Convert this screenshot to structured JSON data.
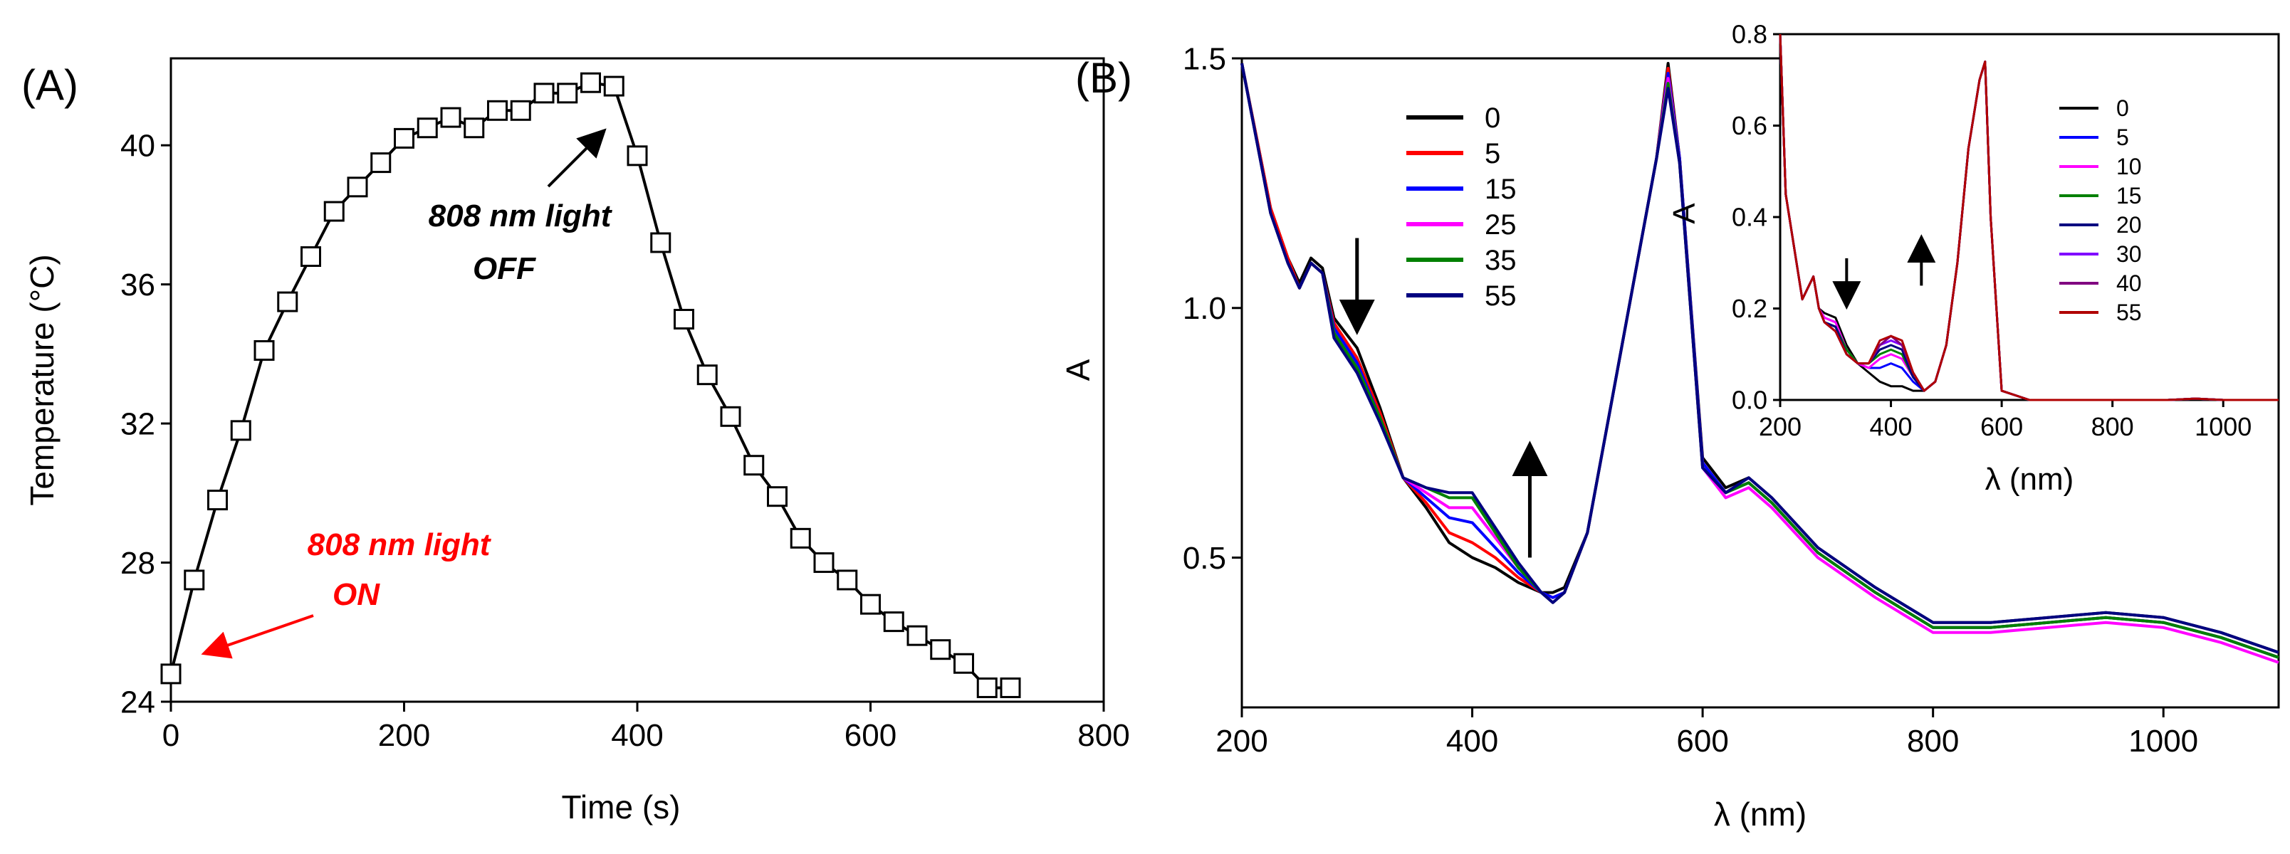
{
  "chart_data": [
    {
      "id": "A",
      "panel_label": "(A)",
      "type": "line",
      "xlabel": "Time (s)",
      "ylabel": "Temperature (°C)",
      "xlim": [
        0,
        800
      ],
      "ylim": [
        24,
        42.5
      ],
      "xticks": [
        0,
        200,
        400,
        600,
        800
      ],
      "yticks": [
        24,
        28,
        32,
        36,
        40
      ],
      "marker": "open-square",
      "series": [
        {
          "name": "Temperature",
          "color": "#000000",
          "x": [
            0,
            20,
            40,
            60,
            80,
            100,
            120,
            140,
            160,
            180,
            200,
            220,
            240,
            260,
            280,
            300,
            320,
            340,
            360,
            380,
            400,
            420,
            440,
            460,
            480,
            500,
            520,
            540,
            560,
            580,
            600,
            620,
            640,
            660,
            680,
            700,
            720
          ],
          "y": [
            24.8,
            27.5,
            29.8,
            31.8,
            34.1,
            35.5,
            36.8,
            38.1,
            38.8,
            39.5,
            40.2,
            40.5,
            40.8,
            40.5,
            41.0,
            41.0,
            41.5,
            41.5,
            41.8,
            41.7,
            39.7,
            37.2,
            35.0,
            33.4,
            32.2,
            30.8,
            29.9,
            28.7,
            28.0,
            27.5,
            26.8,
            26.3,
            25.9,
            25.5,
            25.1,
            24.4,
            24.4
          ]
        }
      ],
      "annotations": [
        {
          "line1": "808 nm light",
          "line2": "ON",
          "color": "#ff0000",
          "points_to": [
            5,
            24.8
          ]
        },
        {
          "line1": "808 nm light",
          "line2": "OFF",
          "color": "#000000",
          "points_to": [
            360,
            41.7
          ]
        }
      ]
    },
    {
      "id": "B",
      "panel_label": "(B)",
      "type": "line",
      "xlabel": "λ (nm)",
      "ylabel": "A",
      "xlim": [
        200,
        1100
      ],
      "ylim": [
        0.2,
        1.5
      ],
      "xticks": [
        200,
        400,
        600,
        800,
        1000
      ],
      "yticks": [
        0.5,
        1.0,
        1.5
      ],
      "ytick_labels": [
        "0.5",
        "1.0",
        "1.5"
      ],
      "x": [
        200,
        225,
        240,
        250,
        260,
        270,
        280,
        300,
        320,
        340,
        360,
        380,
        400,
        420,
        440,
        460,
        470,
        480,
        500,
        520,
        540,
        560,
        570,
        580,
        600,
        620,
        640,
        660,
        700,
        750,
        800,
        850,
        900,
        950,
        1000,
        1050,
        1100
      ],
      "series": [
        {
          "name": "0",
          "color": "#000000",
          "y": [
            1.49,
            1.2,
            1.1,
            1.05,
            1.1,
            1.08,
            0.98,
            0.92,
            0.8,
            0.66,
            0.6,
            0.53,
            0.5,
            0.48,
            0.45,
            0.43,
            0.43,
            0.44,
            0.55,
            0.8,
            1.05,
            1.3,
            1.49,
            1.3,
            0.7,
            0.64,
            0.66,
            0.62,
            0.52,
            0.44,
            0.37,
            0.37,
            0.38,
            0.39,
            0.38,
            0.35,
            0.31
          ]
        },
        {
          "name": "5",
          "color": "#ff0000",
          "y": [
            1.49,
            1.2,
            1.1,
            1.04,
            1.09,
            1.07,
            0.97,
            0.9,
            0.79,
            0.66,
            0.61,
            0.55,
            0.53,
            0.5,
            0.46,
            0.43,
            0.42,
            0.43,
            0.55,
            0.8,
            1.05,
            1.3,
            1.48,
            1.3,
            0.69,
            0.63,
            0.65,
            0.61,
            0.51,
            0.43,
            0.36,
            0.36,
            0.37,
            0.38,
            0.37,
            0.34,
            0.3
          ]
        },
        {
          "name": "15",
          "color": "#0000ff",
          "y": [
            1.49,
            1.19,
            1.09,
            1.04,
            1.09,
            1.07,
            0.96,
            0.89,
            0.78,
            0.66,
            0.62,
            0.58,
            0.57,
            0.52,
            0.47,
            0.43,
            0.42,
            0.43,
            0.55,
            0.8,
            1.05,
            1.3,
            1.47,
            1.3,
            0.69,
            0.63,
            0.65,
            0.61,
            0.51,
            0.43,
            0.36,
            0.36,
            0.37,
            0.38,
            0.37,
            0.34,
            0.3
          ]
        },
        {
          "name": "25",
          "color": "#ff00ff",
          "y": [
            1.49,
            1.19,
            1.09,
            1.04,
            1.09,
            1.07,
            0.95,
            0.88,
            0.78,
            0.66,
            0.63,
            0.6,
            0.6,
            0.54,
            0.48,
            0.43,
            0.41,
            0.43,
            0.55,
            0.8,
            1.05,
            1.3,
            1.46,
            1.29,
            0.68,
            0.62,
            0.64,
            0.6,
            0.5,
            0.42,
            0.35,
            0.35,
            0.36,
            0.37,
            0.36,
            0.33,
            0.29
          ]
        },
        {
          "name": "35",
          "color": "#008000",
          "y": [
            1.49,
            1.19,
            1.09,
            1.04,
            1.09,
            1.07,
            0.95,
            0.88,
            0.78,
            0.66,
            0.64,
            0.62,
            0.62,
            0.55,
            0.48,
            0.43,
            0.41,
            0.43,
            0.55,
            0.8,
            1.05,
            1.3,
            1.45,
            1.29,
            0.68,
            0.63,
            0.65,
            0.61,
            0.51,
            0.43,
            0.36,
            0.36,
            0.37,
            0.38,
            0.37,
            0.34,
            0.3
          ]
        },
        {
          "name": "55",
          "color": "#000080",
          "y": [
            1.49,
            1.19,
            1.09,
            1.04,
            1.09,
            1.07,
            0.94,
            0.87,
            0.77,
            0.66,
            0.64,
            0.63,
            0.63,
            0.56,
            0.49,
            0.43,
            0.41,
            0.43,
            0.55,
            0.8,
            1.05,
            1.3,
            1.44,
            1.29,
            0.68,
            0.63,
            0.66,
            0.62,
            0.52,
            0.44,
            0.37,
            0.37,
            0.38,
            0.39,
            0.38,
            0.35,
            0.31
          ]
        }
      ],
      "arrows": [
        {
          "direction": "down",
          "at_x": 300,
          "from_y": 1.14,
          "to_y": 0.96
        },
        {
          "direction": "up",
          "at_x": 450,
          "from_y": 0.5,
          "to_y": 0.72
        }
      ],
      "inset": {
        "type": "line",
        "xlabel": "λ (nm)",
        "ylabel": "A",
        "xlim": [
          200,
          1100
        ],
        "ylim": [
          0,
          0.8
        ],
        "xticks": [
          200,
          400,
          600,
          800,
          1000
        ],
        "yticks": [
          0.0,
          0.2,
          0.4,
          0.6,
          0.8
        ],
        "ytick_labels": [
          "0.0",
          "0.2",
          "0.4",
          "0.6",
          "0.8"
        ],
        "x": [
          200,
          210,
          240,
          260,
          270,
          280,
          300,
          320,
          340,
          360,
          380,
          400,
          420,
          440,
          460,
          480,
          500,
          520,
          540,
          560,
          570,
          580,
          600,
          650,
          700,
          800,
          900,
          950,
          1000,
          1100
        ],
        "series": [
          {
            "name": "0",
            "color": "#000000",
            "y": [
              0.8,
              0.45,
              0.22,
              0.27,
              0.2,
              0.19,
              0.18,
              0.12,
              0.08,
              0.06,
              0.04,
              0.03,
              0.03,
              0.02,
              0.02,
              0.04,
              0.12,
              0.3,
              0.55,
              0.7,
              0.74,
              0.4,
              0.02,
              0.0,
              0.0,
              0.0,
              0.0,
              0.003,
              0.0,
              0.0
            ]
          },
          {
            "name": "5",
            "color": "#0000ff",
            "y": [
              0.8,
              0.45,
              0.22,
              0.27,
              0.2,
              0.18,
              0.17,
              0.11,
              0.08,
              0.07,
              0.07,
              0.08,
              0.07,
              0.04,
              0.02,
              0.04,
              0.12,
              0.3,
              0.55,
              0.7,
              0.74,
              0.4,
              0.02,
              0.0,
              0.0,
              0.0,
              0.0,
              0.003,
              0.0,
              0.0
            ]
          },
          {
            "name": "10",
            "color": "#ff00ff",
            "y": [
              0.8,
              0.45,
              0.22,
              0.27,
              0.2,
              0.18,
              0.17,
              0.11,
              0.08,
              0.07,
              0.09,
              0.1,
              0.09,
              0.05,
              0.02,
              0.04,
              0.12,
              0.3,
              0.55,
              0.7,
              0.74,
              0.4,
              0.02,
              0.0,
              0.0,
              0.0,
              0.0,
              0.003,
              0.0,
              0.0
            ]
          },
          {
            "name": "15",
            "color": "#008000",
            "y": [
              0.8,
              0.45,
              0.22,
              0.27,
              0.2,
              0.17,
              0.16,
              0.11,
              0.08,
              0.08,
              0.1,
              0.11,
              0.1,
              0.05,
              0.02,
              0.04,
              0.12,
              0.3,
              0.55,
              0.7,
              0.74,
              0.4,
              0.02,
              0.0,
              0.0,
              0.0,
              0.0,
              0.003,
              0.0,
              0.0
            ]
          },
          {
            "name": "20",
            "color": "#000080",
            "y": [
              0.8,
              0.45,
              0.22,
              0.27,
              0.2,
              0.17,
              0.16,
              0.1,
              0.08,
              0.08,
              0.11,
              0.12,
              0.11,
              0.05,
              0.02,
              0.04,
              0.12,
              0.3,
              0.55,
              0.7,
              0.74,
              0.4,
              0.02,
              0.0,
              0.0,
              0.0,
              0.0,
              0.003,
              0.0,
              0.0
            ]
          },
          {
            "name": "30",
            "color": "#8000ff",
            "y": [
              0.8,
              0.45,
              0.22,
              0.27,
              0.2,
              0.17,
              0.15,
              0.1,
              0.08,
              0.08,
              0.12,
              0.13,
              0.12,
              0.06,
              0.02,
              0.04,
              0.12,
              0.3,
              0.55,
              0.7,
              0.74,
              0.4,
              0.02,
              0.0,
              0.0,
              0.0,
              0.0,
              0.003,
              0.0,
              0.0
            ]
          },
          {
            "name": "40",
            "color": "#800080",
            "y": [
              0.8,
              0.45,
              0.22,
              0.27,
              0.2,
              0.17,
              0.15,
              0.1,
              0.08,
              0.08,
              0.12,
              0.14,
              0.12,
              0.06,
              0.02,
              0.04,
              0.12,
              0.3,
              0.55,
              0.7,
              0.74,
              0.4,
              0.02,
              0.0,
              0.0,
              0.0,
              0.0,
              0.003,
              0.0,
              0.0
            ]
          },
          {
            "name": "55",
            "color": "#b00000",
            "y": [
              0.8,
              0.45,
              0.22,
              0.27,
              0.2,
              0.17,
              0.15,
              0.1,
              0.08,
              0.08,
              0.13,
              0.14,
              0.13,
              0.06,
              0.02,
              0.04,
              0.12,
              0.3,
              0.55,
              0.7,
              0.74,
              0.4,
              0.02,
              0.0,
              0.0,
              0.0,
              0.0,
              0.003,
              0.0,
              0.0
            ]
          }
        ],
        "arrows": [
          {
            "direction": "down",
            "at_x": 320,
            "from_y": 0.31,
            "to_y": 0.21
          },
          {
            "direction": "up",
            "at_x": 455,
            "from_y": 0.25,
            "to_y": 0.35
          }
        ]
      }
    }
  ]
}
